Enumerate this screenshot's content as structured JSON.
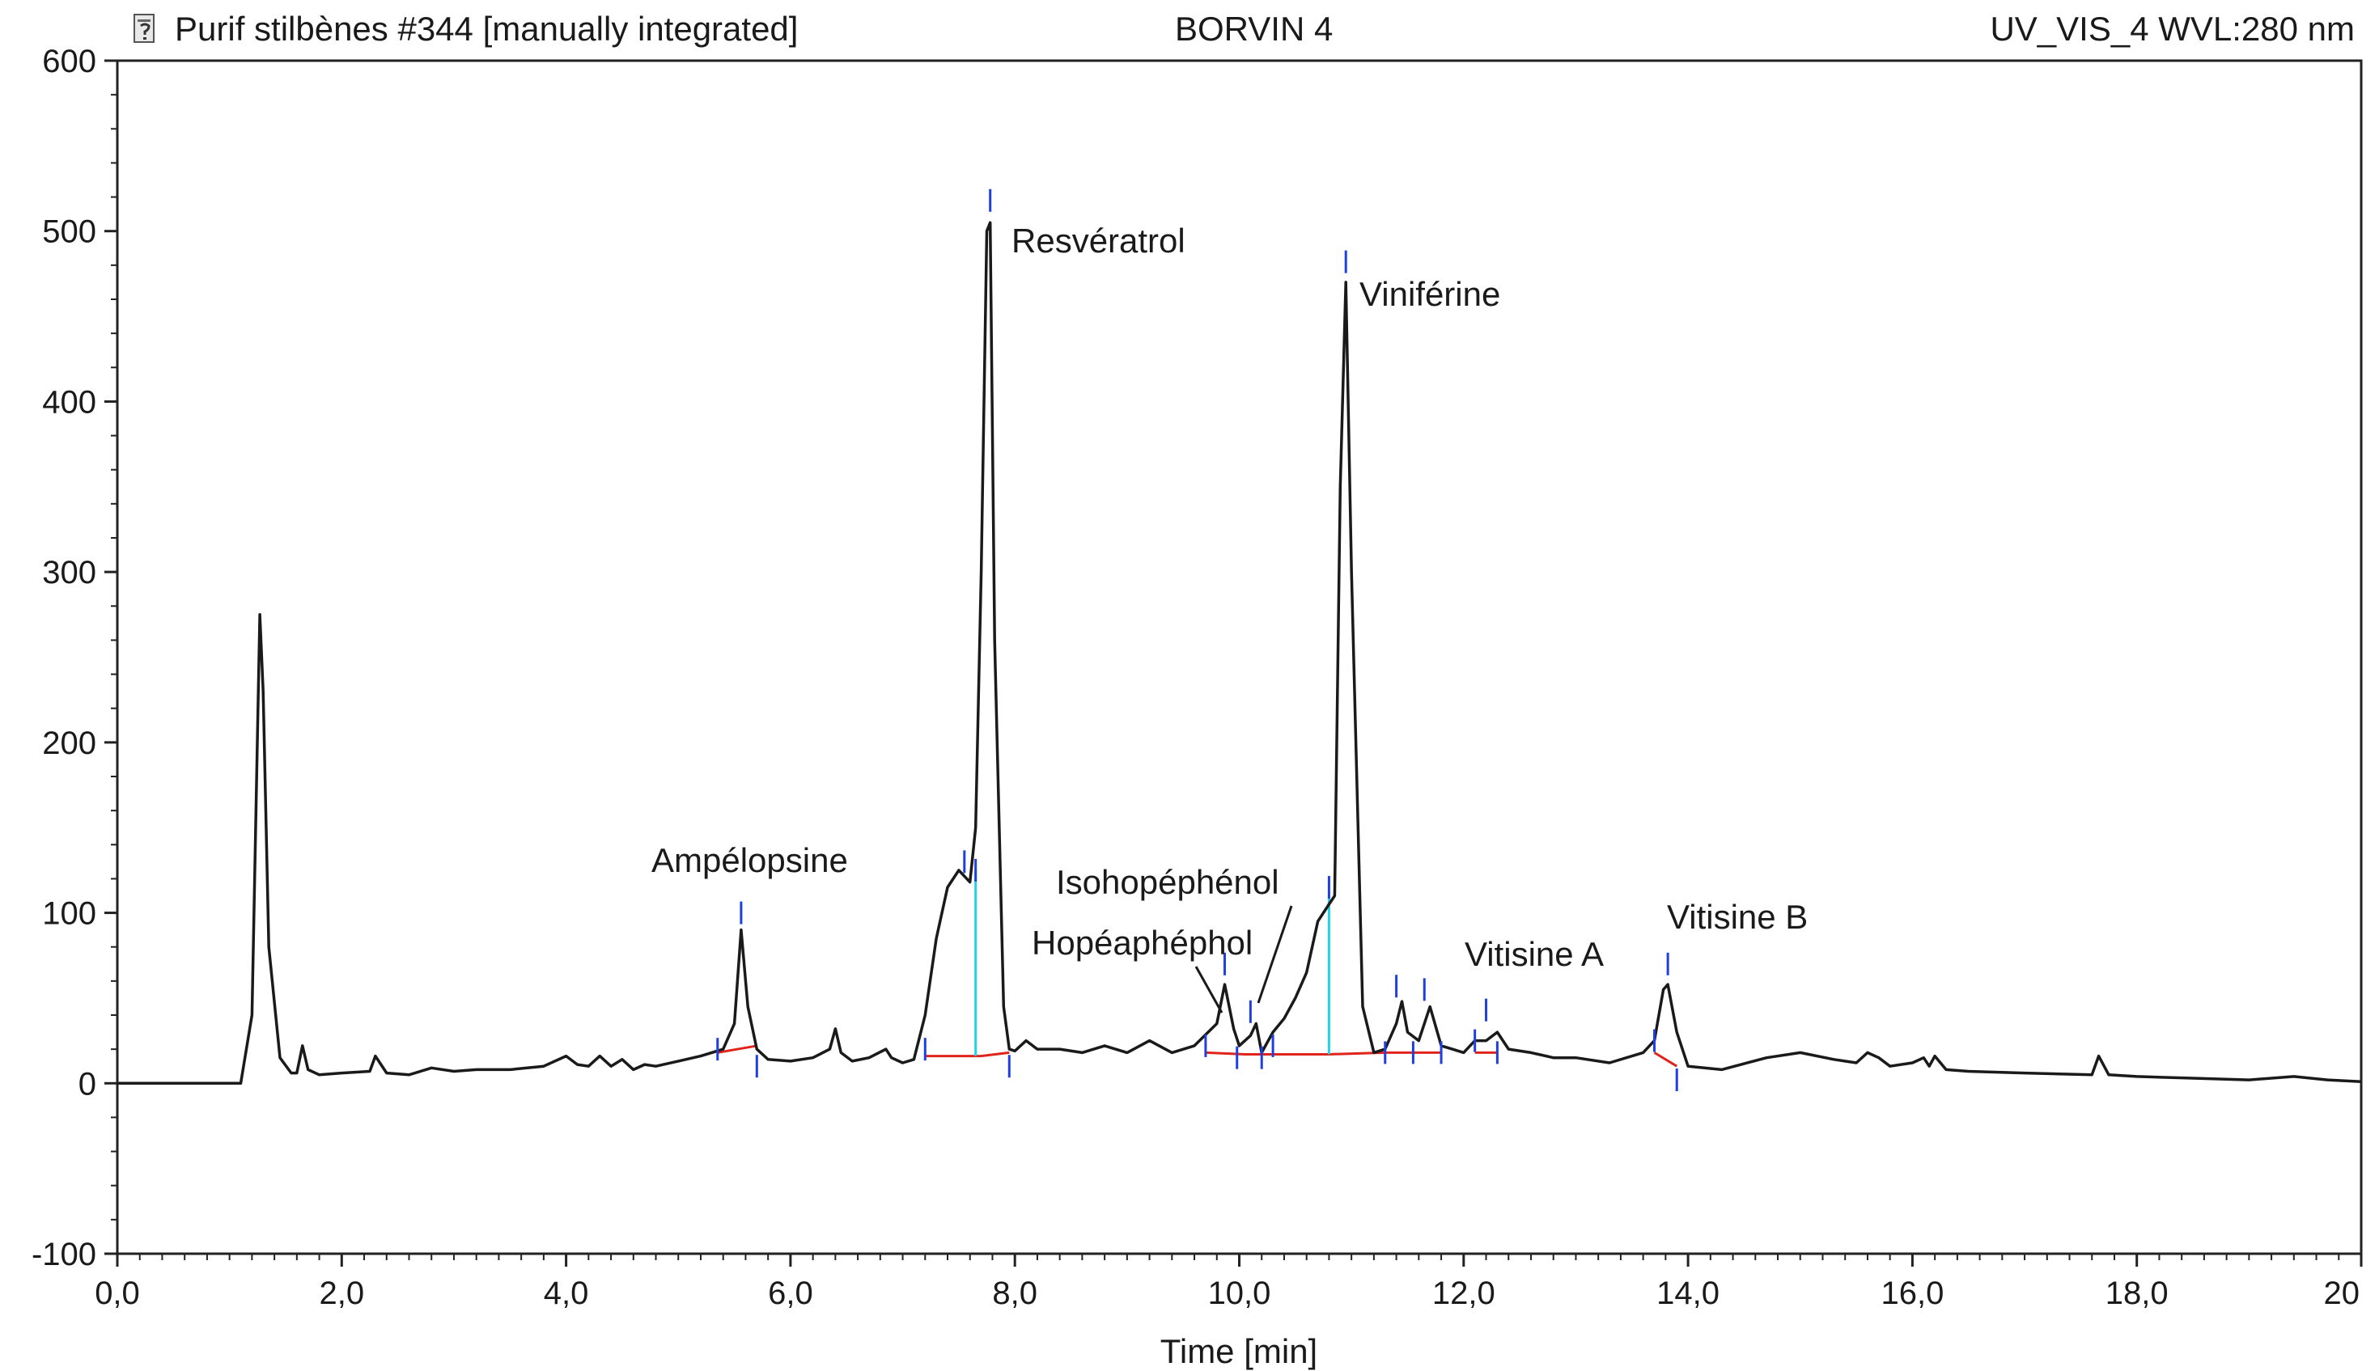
{
  "window": {
    "title": "Purif stilbènes #344 [manually integrated]",
    "sample": "BORVIN 4",
    "channel": "UV_VIS_4 WVL:280 nm"
  },
  "icons": {
    "document": "document-icon"
  },
  "chart_data": {
    "type": "line",
    "title": "Purif stilbènes #344 [manually integrated]",
    "xlabel": "Time [min]",
    "ylabel": "",
    "xlim": [
      0,
      20
    ],
    "ylim": [
      -100,
      600
    ],
    "x_ticks": [
      "0,0",
      "2,0",
      "4,0",
      "6,0",
      "8,0",
      "10,0",
      "12,0",
      "14,0",
      "16,0",
      "18,0",
      "20"
    ],
    "y_ticks": [
      "-100",
      "0",
      "100",
      "200",
      "300",
      "400",
      "500",
      "600"
    ],
    "grid": false,
    "series": [
      {
        "color": "#1a1a1a",
        "x": [
          0.0,
          1.1,
          1.2,
          1.27,
          1.3,
          1.35,
          1.45,
          1.55,
          1.6,
          1.65,
          1.7,
          1.8,
          2.0,
          2.25,
          2.3,
          2.4,
          2.6,
          2.8,
          3.0,
          3.2,
          3.5,
          3.8,
          4.0,
          4.1,
          4.2,
          4.3,
          4.4,
          4.5,
          4.6,
          4.7,
          4.8,
          5.0,
          5.2,
          5.4,
          5.5,
          5.56,
          5.62,
          5.7,
          5.8,
          6.0,
          6.2,
          6.35,
          6.4,
          6.45,
          6.55,
          6.7,
          6.85,
          6.9,
          7.0,
          7.1,
          7.2,
          7.3,
          7.4,
          7.5,
          7.6,
          7.65,
          7.7,
          7.75,
          7.78,
          7.82,
          7.9,
          7.95,
          8.0,
          8.1,
          8.2,
          8.4,
          8.6,
          8.8,
          9.0,
          9.2,
          9.4,
          9.6,
          9.8,
          9.87,
          9.95,
          10.0,
          10.1,
          10.15,
          10.2,
          10.3,
          10.4,
          10.5,
          10.6,
          10.7,
          10.8,
          10.85,
          10.9,
          10.95,
          11.0,
          11.1,
          11.2,
          11.3,
          11.4,
          11.45,
          11.5,
          11.6,
          11.7,
          11.8,
          11.9,
          12.0,
          12.1,
          12.2,
          12.3,
          12.4,
          12.6,
          12.8,
          13.0,
          13.3,
          13.6,
          13.7,
          13.78,
          13.82,
          13.9,
          14.0,
          14.3,
          14.7,
          15.0,
          15.3,
          15.5,
          15.6,
          15.7,
          15.8,
          16.0,
          16.1,
          16.15,
          16.2,
          16.3,
          16.5,
          17.0,
          17.6,
          17.66,
          17.75,
          18.0,
          18.5,
          19.0,
          19.4,
          19.7,
          20.0
        ],
        "y": [
          0,
          0,
          40,
          275,
          230,
          80,
          15,
          6,
          6,
          22,
          8,
          5,
          6,
          7,
          16,
          6,
          5,
          9,
          7,
          8,
          8,
          10,
          16,
          11,
          10,
          16,
          10,
          14,
          8,
          11,
          10,
          13,
          16,
          20,
          35,
          90,
          45,
          20,
          14,
          13,
          15,
          20,
          32,
          18,
          13,
          15,
          20,
          15,
          12,
          14,
          40,
          85,
          115,
          125,
          118,
          150,
          300,
          500,
          505,
          260,
          45,
          20,
          19,
          25,
          20,
          20,
          18,
          22,
          18,
          25,
          18,
          22,
          35,
          58,
          32,
          22,
          28,
          35,
          18,
          30,
          38,
          50,
          65,
          95,
          105,
          110,
          350,
          470,
          300,
          45,
          18,
          20,
          35,
          48,
          30,
          25,
          45,
          22,
          20,
          18,
          25,
          25,
          30,
          20,
          18,
          15,
          15,
          12,
          18,
          25,
          55,
          58,
          30,
          10,
          8,
          15,
          18,
          14,
          12,
          18,
          15,
          10,
          12,
          15,
          10,
          16,
          8,
          7,
          6,
          5,
          16,
          5,
          4,
          3,
          2,
          4,
          2,
          1
        ]
      }
    ],
    "annotations": [
      {
        "text": "Ampélopsine",
        "x": 5.56,
        "y": 92
      },
      {
        "text": "Resvératrol",
        "x": 7.78,
        "y": 505
      },
      {
        "text": "Isohopéphénol",
        "x": 10.1,
        "y": 35
      },
      {
        "text": "Hopéaphéphol",
        "x": 9.87,
        "y": 58
      },
      {
        "text": "Viniférine",
        "x": 10.95,
        "y": 470
      },
      {
        "text": "Vitisine A",
        "x": 12.2,
        "y": 30
      },
      {
        "text": "Vitisine B",
        "x": 13.82,
        "y": 58
      }
    ],
    "baselines": [
      {
        "x": [
          5.35,
          5.7
        ],
        "y": [
          18,
          22
        ]
      },
      {
        "x": [
          7.2,
          7.7,
          7.95
        ],
        "y": [
          16,
          16,
          18
        ]
      },
      {
        "x": [
          9.7,
          10.05,
          10.2,
          10.8,
          11.3,
          11.55,
          11.8
        ],
        "y": [
          18,
          17,
          17,
          17,
          18,
          18,
          18
        ]
      },
      {
        "x": [
          12.1,
          12.3
        ],
        "y": [
          18,
          18
        ]
      },
      {
        "x": [
          13.7,
          13.9
        ],
        "y": [
          18,
          10
        ]
      }
    ],
    "boundary_marks": [
      {
        "x": 5.35,
        "y": 20
      },
      {
        "x": 5.56,
        "y": 100
      },
      {
        "x": 5.7,
        "y": 10
      },
      {
        "x": 7.2,
        "y": 20
      },
      {
        "x": 7.55,
        "y": 130
      },
      {
        "x": 7.65,
        "y": 125
      },
      {
        "x": 7.78,
        "y": 518
      },
      {
        "x": 7.95,
        "y": 10
      },
      {
        "x": 9.7,
        "y": 22
      },
      {
        "x": 9.87,
        "y": 70
      },
      {
        "x": 9.98,
        "y": 15
      },
      {
        "x": 10.1,
        "y": 42
      },
      {
        "x": 10.2,
        "y": 15
      },
      {
        "x": 10.3,
        "y": 22
      },
      {
        "x": 10.8,
        "y": 115
      },
      {
        "x": 10.95,
        "y": 482
      },
      {
        "x": 11.3,
        "y": 18
      },
      {
        "x": 11.4,
        "y": 57
      },
      {
        "x": 11.55,
        "y": 18
      },
      {
        "x": 11.65,
        "y": 55
      },
      {
        "x": 11.8,
        "y": 18
      },
      {
        "x": 12.1,
        "y": 25
      },
      {
        "x": 12.2,
        "y": 43
      },
      {
        "x": 12.3,
        "y": 18
      },
      {
        "x": 13.7,
        "y": 25
      },
      {
        "x": 13.82,
        "y": 70
      },
      {
        "x": 13.9,
        "y": 2
      }
    ],
    "dividers": [
      {
        "x": 7.65,
        "from": 16,
        "to": 125
      },
      {
        "x": 10.8,
        "from": 17,
        "to": 110
      }
    ]
  }
}
